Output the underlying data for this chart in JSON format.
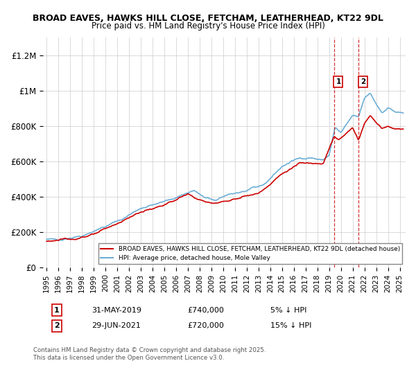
{
  "title_line1": "BROAD EAVES, HAWKS HILL CLOSE, FETCHAM, LEATHERHEAD, KT22 9DL",
  "title_line2": "Price paid vs. HM Land Registry's House Price Index (HPI)",
  "ylabel_ticks": [
    "£0",
    "£200K",
    "£400K",
    "£600K",
    "£800K",
    "£1M",
    "£1.2M"
  ],
  "ytick_values": [
    0,
    200000,
    400000,
    600000,
    800000,
    1000000,
    1200000
  ],
  "ylim": [
    0,
    1300000
  ],
  "xlim_start": 1994.7,
  "xlim_end": 2025.5,
  "hpi_color": "#6baed6",
  "price_color": "#cc0000",
  "dashed_color": "#cc0000",
  "legend_label_red": "BROAD EAVES, HAWKS HILL CLOSE, FETCHAM, LEATHERHEAD, KT22 9DL (detached house)",
  "legend_label_blue": "HPI: Average price, detached house, Mole Valley",
  "transaction1_date": "31-MAY-2019",
  "transaction1_price": "£740,000",
  "transaction1_note": "5% ↓ HPI",
  "transaction1_x": 2019.42,
  "transaction1_y": 740000,
  "transaction2_date": "29-JUN-2021",
  "transaction2_price": "£720,000",
  "transaction2_note": "15% ↓ HPI",
  "transaction2_x": 2021.5,
  "transaction2_y": 720000,
  "footnote": "Contains HM Land Registry data © Crown copyright and database right 2025.\nThis data is licensed under the Open Government Licence v3.0.",
  "background_color": "#ffffff",
  "grid_color": "#cccccc"
}
